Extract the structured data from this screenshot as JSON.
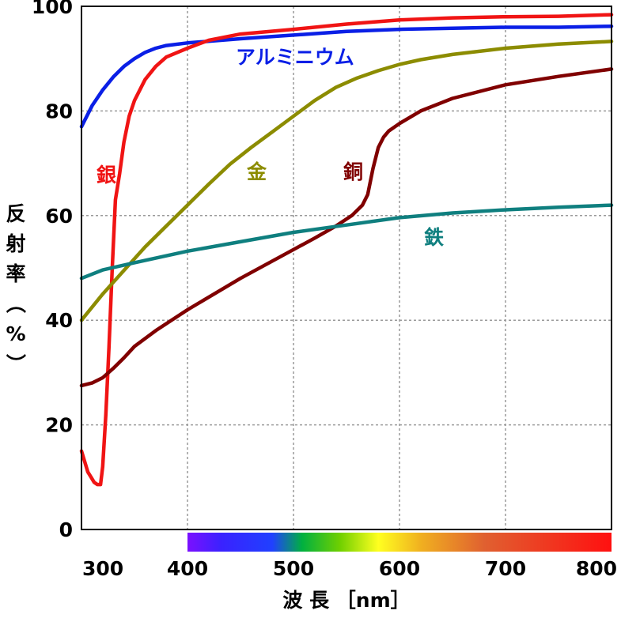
{
  "chart_data": {
    "type": "line",
    "title": "",
    "xlabel": "波 長 ［nm］",
    "ylabel": "反射率（%）",
    "xlim": [
      300,
      800
    ],
    "ylim": [
      0,
      100
    ],
    "x_ticks": [
      "300",
      "400",
      "500",
      "600",
      "700",
      "800"
    ],
    "y_ticks": [
      "0",
      "20",
      "40",
      "60",
      "80",
      "100"
    ],
    "grid": true,
    "spectrum_bar": {
      "range": [
        400,
        800
      ]
    },
    "series": [
      {
        "name": "アルミニウム",
        "color": "#0a1fe6",
        "points": [
          [
            300,
            77
          ],
          [
            310,
            81
          ],
          [
            320,
            84
          ],
          [
            330,
            86.5
          ],
          [
            340,
            88.5
          ],
          [
            350,
            90
          ],
          [
            360,
            91.2
          ],
          [
            370,
            92
          ],
          [
            380,
            92.5
          ],
          [
            400,
            93
          ],
          [
            450,
            93.8
          ],
          [
            500,
            94.5
          ],
          [
            550,
            95.2
          ],
          [
            600,
            95.6
          ],
          [
            650,
            95.8
          ],
          [
            700,
            96
          ],
          [
            750,
            96
          ],
          [
            800,
            96.2
          ]
        ]
      },
      {
        "name": "銀",
        "color": "#f01414",
        "points": [
          [
            300,
            15
          ],
          [
            303,
            13
          ],
          [
            306,
            11
          ],
          [
            309,
            10
          ],
          [
            312,
            9
          ],
          [
            315,
            8.6
          ],
          [
            318,
            8.6
          ],
          [
            320,
            12
          ],
          [
            323,
            22
          ],
          [
            326,
            35
          ],
          [
            329,
            50
          ],
          [
            332,
            63
          ],
          [
            336,
            68
          ],
          [
            340,
            74
          ],
          [
            345,
            79
          ],
          [
            350,
            82
          ],
          [
            360,
            86
          ],
          [
            370,
            88.5
          ],
          [
            380,
            90.3
          ],
          [
            400,
            92
          ],
          [
            420,
            93.5
          ],
          [
            450,
            94.7
          ],
          [
            500,
            95.6
          ],
          [
            550,
            96.6
          ],
          [
            600,
            97.4
          ],
          [
            650,
            97.8
          ],
          [
            700,
            98
          ],
          [
            750,
            98.1
          ],
          [
            800,
            98.4
          ]
        ]
      },
      {
        "name": "金",
        "color": "#8c8c00",
        "points": [
          [
            300,
            40
          ],
          [
            320,
            45
          ],
          [
            340,
            49.5
          ],
          [
            360,
            54
          ],
          [
            380,
            58
          ],
          [
            400,
            62
          ],
          [
            420,
            66
          ],
          [
            440,
            69.8
          ],
          [
            460,
            73
          ],
          [
            480,
            76
          ],
          [
            500,
            79
          ],
          [
            520,
            82
          ],
          [
            540,
            84.5
          ],
          [
            560,
            86.3
          ],
          [
            580,
            87.7
          ],
          [
            600,
            88.9
          ],
          [
            620,
            89.8
          ],
          [
            650,
            90.8
          ],
          [
            700,
            92
          ],
          [
            750,
            92.8
          ],
          [
            800,
            93.3
          ]
        ]
      },
      {
        "name": "銅",
        "color": "#800000",
        "points": [
          [
            300,
            27.5
          ],
          [
            310,
            28
          ],
          [
            320,
            29
          ],
          [
            330,
            30.8
          ],
          [
            340,
            32.8
          ],
          [
            350,
            35
          ],
          [
            370,
            38
          ],
          [
            400,
            42
          ],
          [
            450,
            48
          ],
          [
            500,
            53.5
          ],
          [
            520,
            55.7
          ],
          [
            540,
            58
          ],
          [
            555,
            60
          ],
          [
            565,
            62
          ],
          [
            570,
            64
          ],
          [
            575,
            69
          ],
          [
            580,
            73
          ],
          [
            585,
            75
          ],
          [
            590,
            76.2
          ],
          [
            600,
            77.6
          ],
          [
            620,
            80
          ],
          [
            650,
            82.4
          ],
          [
            700,
            85
          ],
          [
            750,
            86.6
          ],
          [
            800,
            88
          ]
        ]
      },
      {
        "name": "鉄",
        "color": "#0f7f7f",
        "points": [
          [
            300,
            48
          ],
          [
            320,
            49.6
          ],
          [
            350,
            51
          ],
          [
            400,
            53.2
          ],
          [
            450,
            55
          ],
          [
            500,
            56.8
          ],
          [
            550,
            58.2
          ],
          [
            600,
            59.6
          ],
          [
            650,
            60.5
          ],
          [
            700,
            61.1
          ],
          [
            750,
            61.6
          ],
          [
            800,
            62
          ]
        ]
      }
    ]
  }
}
